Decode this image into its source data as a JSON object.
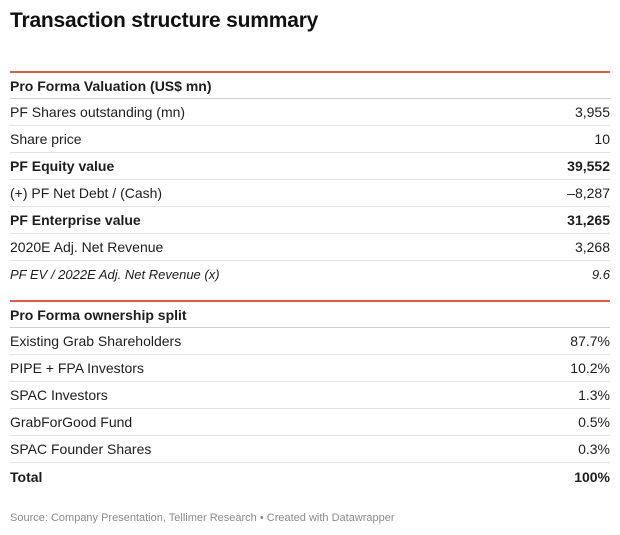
{
  "title": "Transaction structure summary",
  "valuation": {
    "header": "Pro Forma Valuation (US$ mn)",
    "rows": [
      {
        "label": "PF Shares outstanding (mn)",
        "value": "3,955"
      },
      {
        "label": "Share price",
        "value": "10"
      },
      {
        "label": "PF Equity value",
        "value": "39,552"
      },
      {
        "label": "(+) PF Net Debt / (Cash)",
        "value": "–8,287"
      },
      {
        "label": "PF Enterprise value",
        "value": "31,265"
      },
      {
        "label": "2020E Adj. Net Revenue",
        "value": "3,268"
      },
      {
        "label": "PF EV / 2022E Adj. Net Revenue (x)",
        "value": "9.6"
      }
    ]
  },
  "ownership": {
    "header": "Pro Forma ownership split",
    "rows": [
      {
        "label": "Existing Grab Shareholders",
        "value": "87.7%"
      },
      {
        "label": "PIPE + FPA Investors",
        "value": "10.2%"
      },
      {
        "label": "SPAC Investors",
        "value": "1.3%"
      },
      {
        "label": "GrabForGood Fund",
        "value": "0.5%"
      },
      {
        "label": "SPAC Founder Shares",
        "value": "0.3%"
      },
      {
        "label": "Total",
        "value": "100%"
      }
    ]
  },
  "source": "Source: Company Presentation, Tellimer Research • Created with Datawrapper"
}
